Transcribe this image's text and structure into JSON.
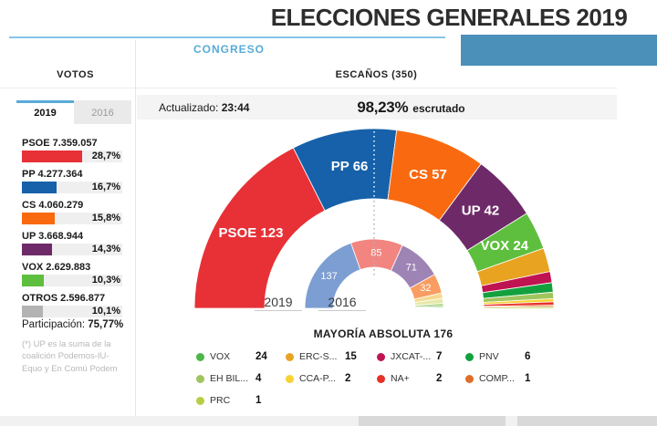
{
  "header": {
    "title": "ELECCIONES GENERALES 2019",
    "section_tab": "CONGRESO"
  },
  "columns": {
    "votes_header": "VOTOS",
    "seats_header": "ESCAÑOS (350)"
  },
  "votes_panel": {
    "tabs": [
      {
        "label": "2019",
        "active": true
      },
      {
        "label": "2016",
        "active": false
      }
    ],
    "rows": [
      {
        "party": "PSOE",
        "votes": "7.359.057",
        "pct": "28,7%",
        "pct_value": 28.7,
        "color": "#e73137"
      },
      {
        "party": "PP",
        "votes": "4.277.364",
        "pct": "16,7%",
        "pct_value": 16.7,
        "color": "#1661a9"
      },
      {
        "party": "CS",
        "votes": "4.060.279",
        "pct": "15,8%",
        "pct_value": 15.8,
        "color": "#f96a10"
      },
      {
        "party": "UP",
        "votes": "3.668.944",
        "pct": "14,3%",
        "pct_value": 14.3,
        "color": "#6e2a68"
      },
      {
        "party": "VOX",
        "votes": "2.629.883",
        "pct": "10,3%",
        "pct_value": 10.3,
        "color": "#5dbf3d"
      },
      {
        "party": "OTROS",
        "votes": "2.596.877",
        "pct": "10,1%",
        "pct_value": 10.1,
        "color": "#b3b3b3"
      }
    ],
    "participation_label": "Participación:",
    "participation_value": "75,77%",
    "footnote": "(*) UP es la suma de la coalición Podemos-IU-Equo y En Comú Podem"
  },
  "status_bar": {
    "updated_label": "Actualizado:",
    "updated_time": "23:44",
    "scrutinized_pct": "98,23%",
    "scrutinized_label": "escrutado"
  },
  "chart_data": {
    "type": "hemicycle-donut",
    "title": "ESCAÑOS (350)",
    "total_seats": 350,
    "majority_threshold": 176,
    "majority_label": "MAYORÍA ABSOLUTA 176",
    "ring_base_labels": [
      "2019",
      "2016"
    ],
    "rings": [
      {
        "year": "2019",
        "inner_radius": 120,
        "outer_radius": 197,
        "series": [
          {
            "name": "PSOE",
            "seats": 123,
            "color": "#e73137",
            "show_label": true
          },
          {
            "name": "PP",
            "seats": 66,
            "color": "#1661a9",
            "show_label": true
          },
          {
            "name": "CS",
            "seats": 57,
            "color": "#f96a10",
            "show_label": true
          },
          {
            "name": "UP",
            "seats": 42,
            "color": "#6e2a68",
            "show_label": true
          },
          {
            "name": "VOX",
            "seats": 24,
            "color": "#5dbf3d",
            "show_label": true
          },
          {
            "name": "ERC-S",
            "seats": 15,
            "color": "#e8a321",
            "show_label": false
          },
          {
            "name": "JXCAT",
            "seats": 7,
            "color": "#c01351",
            "show_label": false
          },
          {
            "name": "PNV",
            "seats": 6,
            "color": "#13a13e",
            "show_label": false
          },
          {
            "name": "EH BILDU",
            "seats": 4,
            "color": "#a0c55e",
            "show_label": false
          },
          {
            "name": "CCA-P",
            "seats": 2,
            "color": "#f7d333",
            "show_label": false
          },
          {
            "name": "NA+",
            "seats": 2,
            "color": "#e63028",
            "show_label": false
          },
          {
            "name": "COMP",
            "seats": 1,
            "color": "#e06d26",
            "show_label": false
          },
          {
            "name": "PRC",
            "seats": 1,
            "color": "#b8cd44",
            "show_label": false
          }
        ]
      },
      {
        "year": "2016",
        "inner_radius": 45,
        "outer_radius": 76,
        "series": [
          {
            "name": "PP",
            "seats": 137,
            "color": "#7d9ed2",
            "show_label": true
          },
          {
            "name": "PSOE",
            "seats": 85,
            "color": "#f28580",
            "show_label": true
          },
          {
            "name": "UP",
            "seats": 71,
            "color": "#9d84b5",
            "show_label": true
          },
          {
            "name": "CS",
            "seats": 32,
            "color": "#fa9d62",
            "show_label": true
          },
          {
            "name": "",
            "seats": 9,
            "color": "#f5d98f",
            "show_label": false
          },
          {
            "name": "",
            "seats": 8,
            "color": "#e6e9a8",
            "show_label": false
          },
          {
            "name": "",
            "seats": 5,
            "color": "#b5d994",
            "show_label": false
          },
          {
            "name": "",
            "seats": 2,
            "color": "#6fc06f",
            "show_label": false
          },
          {
            "name": "",
            "seats": 1,
            "color": "#3fae57",
            "show_label": false
          }
        ]
      }
    ]
  },
  "legend": {
    "items": [
      {
        "label": "VOX",
        "value": "24",
        "color": "#4cb748"
      },
      {
        "label": "ERC-S...",
        "value": "15",
        "color": "#e8a321"
      },
      {
        "label": "JXCAT-...",
        "value": "7",
        "color": "#c01351"
      },
      {
        "label": "PNV",
        "value": "6",
        "color": "#13a13e"
      },
      {
        "label": "EH BIL...",
        "value": "4",
        "color": "#a0c55e"
      },
      {
        "label": "CCA-P...",
        "value": "2",
        "color": "#f7d333"
      },
      {
        "label": "NA+",
        "value": "2",
        "color": "#e63028"
      },
      {
        "label": "COMP...",
        "value": "1",
        "color": "#e06d26"
      },
      {
        "label": "PRC",
        "value": "1",
        "color": "#b8cd44"
      }
    ]
  },
  "colors": {
    "accent_blue": "#58abd8",
    "banner_blue": "#4a90b8",
    "line_blue": "#85c5e8"
  }
}
